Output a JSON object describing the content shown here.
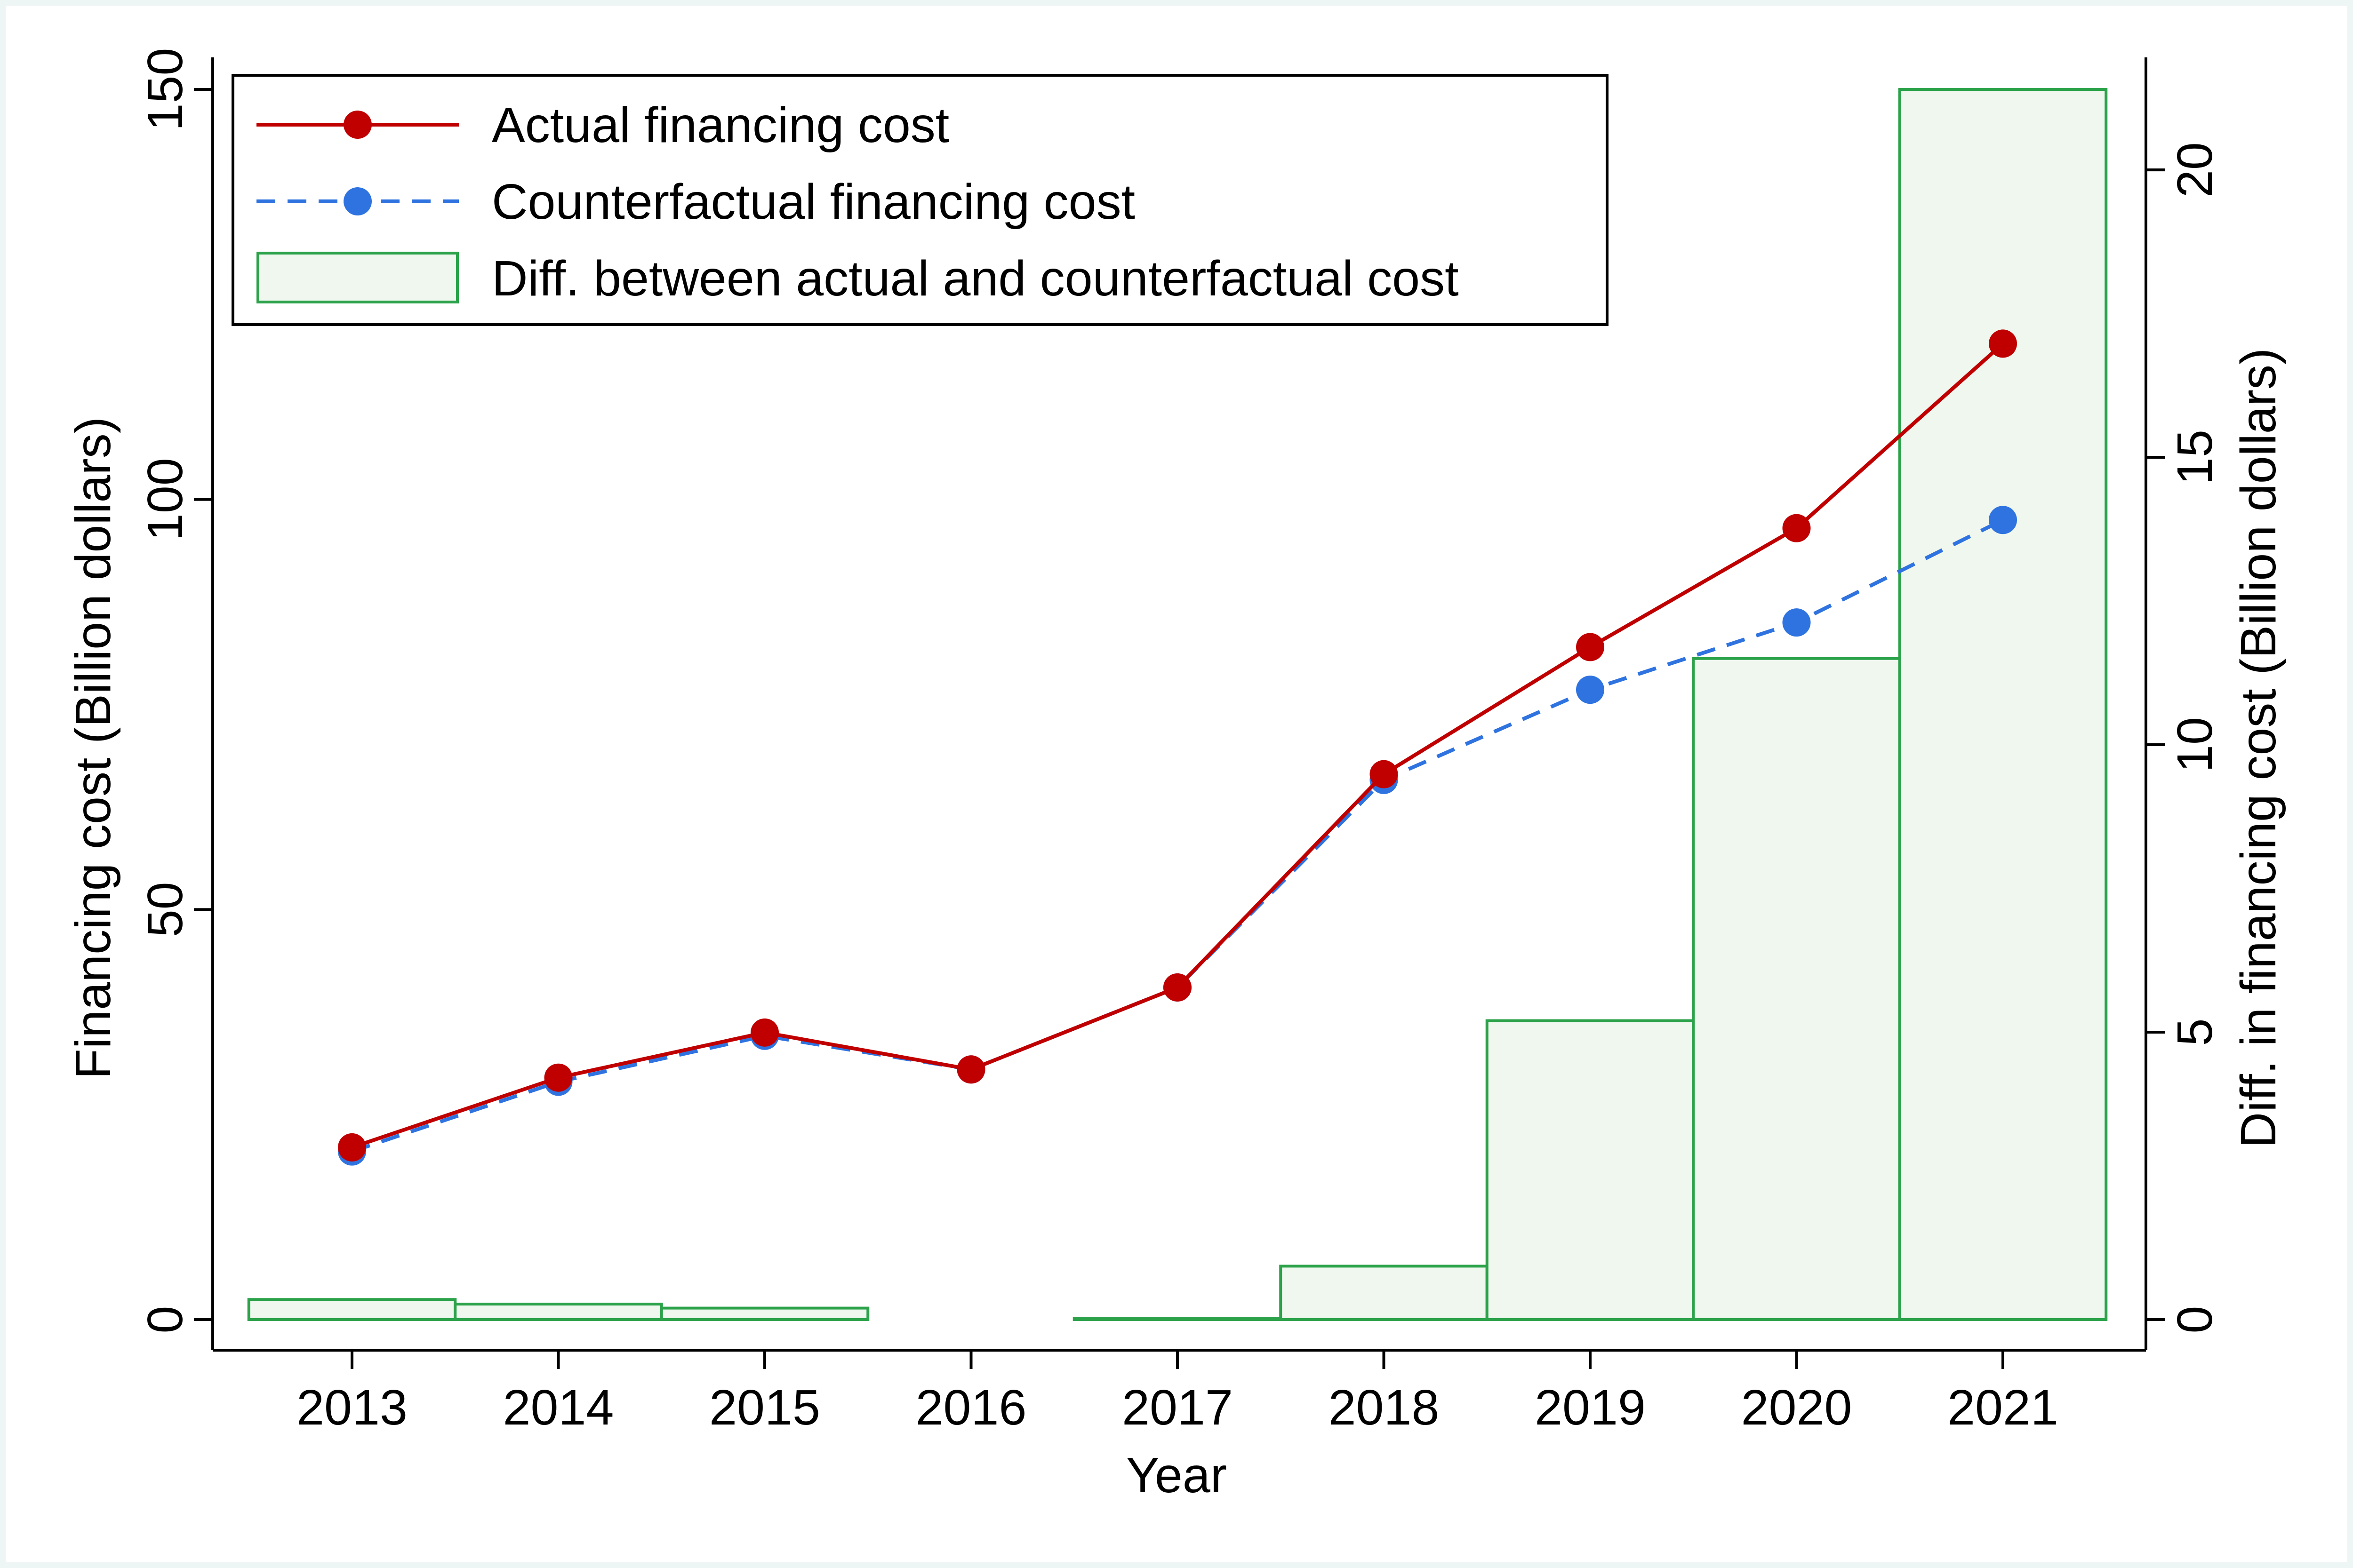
{
  "chart_data": {
    "type": "line+bar",
    "x": [
      2013,
      2014,
      2015,
      2016,
      2017,
      2018,
      2019,
      2020,
      2021
    ],
    "xlabel": "Year",
    "x_tick_labels": [
      "2013",
      "2014",
      "2015",
      "2016",
      "2017",
      "2018",
      "2019",
      "2020",
      "2021"
    ],
    "y_left": {
      "label": "Financing cost (Billion dollars)",
      "lim": [
        0,
        150
      ],
      "ticks": [
        0,
        50,
        100,
        150
      ]
    },
    "y_right": {
      "label": "Diff. in financing cost (Billion dollars)",
      "lim": [
        0,
        21.4
      ],
      "ticks": [
        0,
        5,
        10,
        15,
        20
      ]
    },
    "series": [
      {
        "name": "Actual financing cost",
        "axis": "left",
        "style": "solid",
        "color": "#c00000",
        "values": [
          21,
          29.5,
          35,
          30.5,
          40.5,
          66.5,
          82,
          96.5,
          119
        ]
      },
      {
        "name": "Counterfactual financing cost",
        "axis": "left",
        "style": "dashed",
        "color": "#2f73e0",
        "values": [
          20.5,
          29,
          34.6,
          30.5,
          40.5,
          65.8,
          76.8,
          85,
          97.5
        ]
      },
      {
        "name": "Diff. between actual and counterfactual cost",
        "axis": "right",
        "style": "bar",
        "color": "#2ca24a",
        "fill": "#eff7ef",
        "values": [
          0.35,
          0.27,
          0.2,
          null,
          0.02,
          0.93,
          5.2,
          11.5,
          21.4
        ]
      }
    ],
    "legend_position": "top-left",
    "grid": false
  }
}
